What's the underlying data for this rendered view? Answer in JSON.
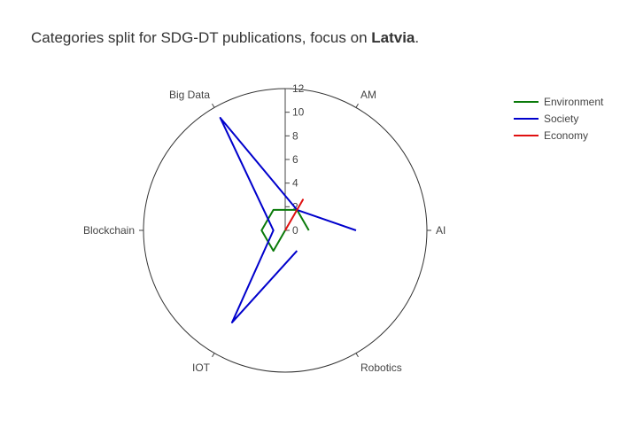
{
  "title": {
    "prefix": "Categories split for SDG-DT publications, focus on ",
    "focus": "Latvia",
    "suffix": "."
  },
  "chart_data": {
    "type": "radar",
    "categories": [
      "AI",
      "AM",
      "Big Data",
      "Blockchain",
      "IOT",
      "Robotics"
    ],
    "radial_range": [
      0,
      12
    ],
    "radial_ticks": [
      0,
      2,
      4,
      6,
      8,
      10,
      12
    ],
    "legend_position": "top-right",
    "grid": false,
    "series": [
      {
        "name": "Environment",
        "color": "#0a7a0a",
        "values": [
          2,
          2,
          2,
          2,
          2,
          0
        ]
      },
      {
        "name": "Society",
        "color": "#0000cc",
        "values": [
          6,
          2,
          11,
          1,
          9,
          2
        ]
      },
      {
        "name": "Economy",
        "color": "#e01010",
        "values": [
          0,
          3,
          0,
          0,
          0,
          0
        ]
      }
    ]
  }
}
